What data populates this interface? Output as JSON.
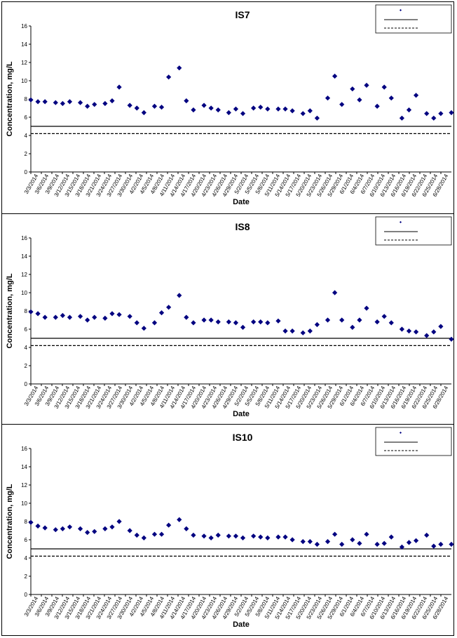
{
  "chart_data": [
    {
      "type": "scatter",
      "title": "IS7",
      "xlabel": "Date",
      "ylabel": "Concentration, mg/L",
      "ylim": [
        0,
        16
      ],
      "yticks": [
        0,
        2,
        4,
        6,
        8,
        10,
        12,
        14,
        16
      ],
      "xlim": [
        "2014-03-03",
        "2014-06-30"
      ],
      "xtick_labels": [
        "3/3/2014",
        "3/6/2014",
        "3/9/2014",
        "3/12/2014",
        "3/15/2014",
        "3/18/2014",
        "3/21/2014",
        "3/24/2014",
        "3/27/2014",
        "3/30/2014",
        "4/2/2014",
        "4/5/2014",
        "4/8/2014",
        "4/11/2014",
        "4/14/2014",
        "4/17/2014",
        "4/20/2014",
        "4/23/2014",
        "4/26/2014",
        "4/29/2014",
        "5/2/2014",
        "5/5/2014",
        "5/8/2014",
        "5/11/2014",
        "5/14/2014",
        "5/17/2014",
        "5/20/2014",
        "5/23/2014",
        "5/26/2014",
        "5/29/2014",
        "6/1/2014",
        "6/4/2014",
        "6/7/2014",
        "6/10/2014",
        "6/13/2014",
        "6/16/2014",
        "6/19/2014",
        "6/22/2014",
        "6/25/2014",
        "6/28/2014"
      ],
      "reference_lines": [
        {
          "style": "solid",
          "value": 5.0
        },
        {
          "style": "dashed",
          "value": 4.2
        }
      ],
      "series": [
        {
          "marker": "diamond",
          "color": "#000080",
          "x": [
            "2014-03-03",
            "2014-03-05",
            "2014-03-07",
            "2014-03-10",
            "2014-03-12",
            "2014-03-14",
            "2014-03-17",
            "2014-03-19",
            "2014-03-21",
            "2014-03-24",
            "2014-03-26",
            "2014-03-28",
            "2014-03-31",
            "2014-04-02",
            "2014-04-04",
            "2014-04-07",
            "2014-04-09",
            "2014-04-11",
            "2014-04-14",
            "2014-04-16",
            "2014-04-18",
            "2014-04-21",
            "2014-04-23",
            "2014-04-25",
            "2014-04-28",
            "2014-04-30",
            "2014-05-02",
            "2014-05-05",
            "2014-05-07",
            "2014-05-09",
            "2014-05-12",
            "2014-05-14",
            "2014-05-16",
            "2014-05-19",
            "2014-05-21",
            "2014-05-23",
            "2014-05-26",
            "2014-05-28",
            "2014-05-30",
            "2014-06-02",
            "2014-06-04",
            "2014-06-06",
            "2014-06-09",
            "2014-06-11",
            "2014-06-13",
            "2014-06-16",
            "2014-06-18",
            "2014-06-20",
            "2014-06-23",
            "2014-06-25",
            "2014-06-27",
            "2014-06-30"
          ],
          "y": [
            7.9,
            7.7,
            7.7,
            7.6,
            7.5,
            7.7,
            7.6,
            7.2,
            7.4,
            7.5,
            7.8,
            9.3,
            7.3,
            7.0,
            6.5,
            7.2,
            7.1,
            10.4,
            11.4,
            7.8,
            6.8,
            7.3,
            7.0,
            6.8,
            6.5,
            6.9,
            6.4,
            7.0,
            7.1,
            6.9,
            6.9,
            6.9,
            6.7,
            6.4,
            6.7,
            5.9,
            8.1,
            10.5,
            7.4,
            9.1,
            7.9,
            9.5,
            7.2,
            9.3,
            8.1,
            5.9,
            6.8,
            8.4,
            6.4,
            5.9,
            6.4,
            6.5
          ]
        }
      ]
    },
    {
      "type": "scatter",
      "title": "IS8",
      "xlabel": "Date",
      "ylabel": "Concentration, mg/L",
      "ylim": [
        0,
        16
      ],
      "yticks": [
        0,
        2,
        4,
        6,
        8,
        10,
        12,
        14,
        16
      ],
      "xlim": [
        "2014-03-03",
        "2014-06-30"
      ],
      "xtick_labels": [
        "3/3/2014",
        "3/6/2014",
        "3/9/2014",
        "3/12/2014",
        "3/15/2014",
        "3/18/2014",
        "3/21/2014",
        "3/24/2014",
        "3/27/2014",
        "3/30/2014",
        "4/2/2014",
        "4/5/2014",
        "4/8/2014",
        "4/11/2014",
        "4/14/2014",
        "4/17/2014",
        "4/20/2014",
        "4/23/2014",
        "4/26/2014",
        "4/29/2014",
        "5/2/2014",
        "5/5/2014",
        "5/8/2014",
        "5/11/2014",
        "5/14/2014",
        "5/17/2014",
        "5/20/2014",
        "5/23/2014",
        "5/26/2014",
        "5/29/2014",
        "6/1/2014",
        "6/4/2014",
        "6/7/2014",
        "6/10/2014",
        "6/13/2014",
        "6/16/2014",
        "6/19/2014",
        "6/22/2014",
        "6/25/2014",
        "6/28/2014"
      ],
      "reference_lines": [
        {
          "style": "solid",
          "value": 5.0
        },
        {
          "style": "dashed",
          "value": 4.2
        }
      ],
      "series": [
        {
          "marker": "diamond",
          "color": "#000080",
          "x": [
            "2014-03-03",
            "2014-03-05",
            "2014-03-07",
            "2014-03-10",
            "2014-03-12",
            "2014-03-14",
            "2014-03-17",
            "2014-03-19",
            "2014-03-21",
            "2014-03-24",
            "2014-03-26",
            "2014-03-28",
            "2014-03-31",
            "2014-04-02",
            "2014-04-04",
            "2014-04-07",
            "2014-04-09",
            "2014-04-11",
            "2014-04-14",
            "2014-04-16",
            "2014-04-18",
            "2014-04-21",
            "2014-04-23",
            "2014-04-25",
            "2014-04-28",
            "2014-04-30",
            "2014-05-02",
            "2014-05-05",
            "2014-05-07",
            "2014-05-09",
            "2014-05-12",
            "2014-05-14",
            "2014-05-16",
            "2014-05-19",
            "2014-05-21",
            "2014-05-23",
            "2014-05-26",
            "2014-05-28",
            "2014-05-30",
            "2014-06-02",
            "2014-06-04",
            "2014-06-06",
            "2014-06-09",
            "2014-06-11",
            "2014-06-13",
            "2014-06-16",
            "2014-06-18",
            "2014-06-20",
            "2014-06-23",
            "2014-06-25",
            "2014-06-27",
            "2014-06-30"
          ],
          "y": [
            7.9,
            7.7,
            7.3,
            7.3,
            7.5,
            7.3,
            7.4,
            7.0,
            7.3,
            7.2,
            7.7,
            7.6,
            7.4,
            6.7,
            6.1,
            6.7,
            7.8,
            8.4,
            9.7,
            7.3,
            6.7,
            7.0,
            7.0,
            6.8,
            6.8,
            6.7,
            6.2,
            6.8,
            6.8,
            6.7,
            6.9,
            5.8,
            5.8,
            5.6,
            5.8,
            6.5,
            7.0,
            10.0,
            7.0,
            6.2,
            7.0,
            8.3,
            6.8,
            7.4,
            6.7,
            6.0,
            5.8,
            5.7,
            5.3,
            5.7,
            6.3,
            4.9
          ]
        }
      ]
    },
    {
      "type": "scatter",
      "title": "IS10",
      "xlabel": "Date",
      "ylabel": "Concentration, mg/L",
      "ylim": [
        0,
        16
      ],
      "yticks": [
        0,
        2,
        4,
        6,
        8,
        10,
        12,
        14,
        16
      ],
      "xlim": [
        "2014-03-03",
        "2014-06-30"
      ],
      "xtick_labels": [
        "3/3/2014",
        "3/6/2014",
        "3/9/2014",
        "3/12/2014",
        "3/15/2014",
        "3/18/2014",
        "3/21/2014",
        "3/24/2014",
        "3/27/2014",
        "3/30/2014",
        "4/2/2014",
        "4/5/2014",
        "4/8/2014",
        "4/11/2014",
        "4/14/2014",
        "4/17/2014",
        "4/20/2014",
        "4/23/2014",
        "4/26/2014",
        "4/29/2014",
        "5/2/2014",
        "5/5/2014",
        "5/8/2014",
        "5/11/2014",
        "5/14/2014",
        "5/17/2014",
        "5/20/2014",
        "5/23/2014",
        "5/26/2014",
        "5/29/2014",
        "6/1/2014",
        "6/4/2014",
        "6/7/2014",
        "6/10/2014",
        "6/13/2014",
        "6/16/2014",
        "6/19/2014",
        "6/22/2014",
        "6/25/2014",
        "6/28/2014"
      ],
      "reference_lines": [
        {
          "style": "solid",
          "value": 5.0
        },
        {
          "style": "dashed",
          "value": 4.2
        }
      ],
      "series": [
        {
          "marker": "diamond",
          "color": "#000080",
          "x": [
            "2014-03-03",
            "2014-03-05",
            "2014-03-07",
            "2014-03-10",
            "2014-03-12",
            "2014-03-14",
            "2014-03-17",
            "2014-03-19",
            "2014-03-21",
            "2014-03-24",
            "2014-03-26",
            "2014-03-28",
            "2014-03-31",
            "2014-04-02",
            "2014-04-04",
            "2014-04-07",
            "2014-04-09",
            "2014-04-11",
            "2014-04-14",
            "2014-04-16",
            "2014-04-18",
            "2014-04-21",
            "2014-04-23",
            "2014-04-25",
            "2014-04-28",
            "2014-04-30",
            "2014-05-02",
            "2014-05-05",
            "2014-05-07",
            "2014-05-09",
            "2014-05-12",
            "2014-05-14",
            "2014-05-16",
            "2014-05-19",
            "2014-05-21",
            "2014-05-23",
            "2014-05-26",
            "2014-05-28",
            "2014-05-30",
            "2014-06-02",
            "2014-06-04",
            "2014-06-06",
            "2014-06-09",
            "2014-06-11",
            "2014-06-13",
            "2014-06-16",
            "2014-06-18",
            "2014-06-20",
            "2014-06-23",
            "2014-06-25",
            "2014-06-27",
            "2014-06-30"
          ],
          "y": [
            7.9,
            7.5,
            7.3,
            7.1,
            7.2,
            7.4,
            7.2,
            6.8,
            6.9,
            7.2,
            7.4,
            8.0,
            7.0,
            6.5,
            6.2,
            6.6,
            6.6,
            7.6,
            8.2,
            7.2,
            6.5,
            6.4,
            6.2,
            6.5,
            6.4,
            6.4,
            6.2,
            6.4,
            6.3,
            6.2,
            6.3,
            6.3,
            6.0,
            5.8,
            5.8,
            5.5,
            5.8,
            6.6,
            5.5,
            6.0,
            5.6,
            6.6,
            5.5,
            5.6,
            6.3,
            5.2,
            5.7,
            5.9,
            6.5,
            5.3,
            5.5,
            5.5
          ]
        }
      ]
    }
  ]
}
